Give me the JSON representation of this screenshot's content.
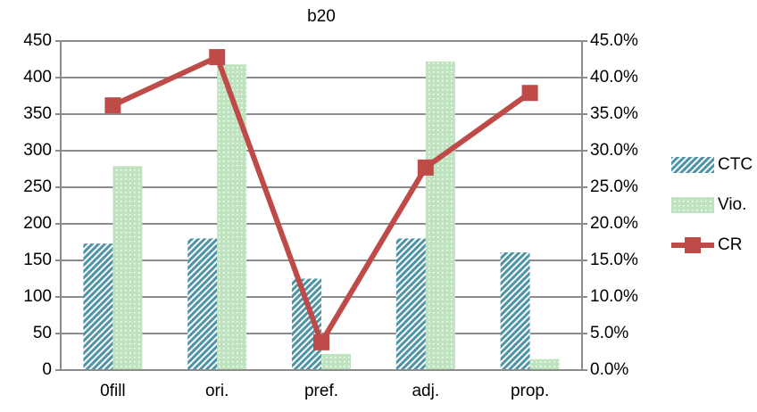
{
  "chart_data": {
    "type": "bar",
    "title": "b20",
    "categories": [
      "0fill",
      "ori.",
      "pref.",
      "adj.",
      "prop."
    ],
    "series": [
      {
        "name": "CTC",
        "type": "bar",
        "color": "#4f94a6",
        "values": [
          173,
          180,
          125,
          180,
          161
        ]
      },
      {
        "name": "Vio.",
        "type": "bar",
        "color": "#bfe3bf",
        "values": [
          279,
          418,
          22,
          422,
          15
        ]
      },
      {
        "name": "CR",
        "type": "line",
        "axis": "y2",
        "color": "#be4b48",
        "values": [
          36.2,
          42.8,
          3.8,
          27.7,
          37.9
        ]
      }
    ],
    "ylim": [
      0,
      450
    ],
    "yticks": [
      0,
      50,
      100,
      150,
      200,
      250,
      300,
      350,
      400,
      450
    ],
    "y2lim": [
      0,
      45
    ],
    "y2ticks": [
      {
        "value": 0,
        "label": "0.0%"
      },
      {
        "value": 5,
        "label": "5.0%"
      },
      {
        "value": 10,
        "label": "10.0%"
      },
      {
        "value": 15,
        "label": "15.0%"
      },
      {
        "value": 20,
        "label": "20.0%"
      },
      {
        "value": 25,
        "label": "25.0%"
      },
      {
        "value": 30,
        "label": "30.0%"
      },
      {
        "value": 35,
        "label": "35.0%"
      },
      {
        "value": 40,
        "label": "40.0%"
      },
      {
        "value": 45,
        "label": "45.0%"
      }
    ],
    "grid": true,
    "legend": "right"
  }
}
